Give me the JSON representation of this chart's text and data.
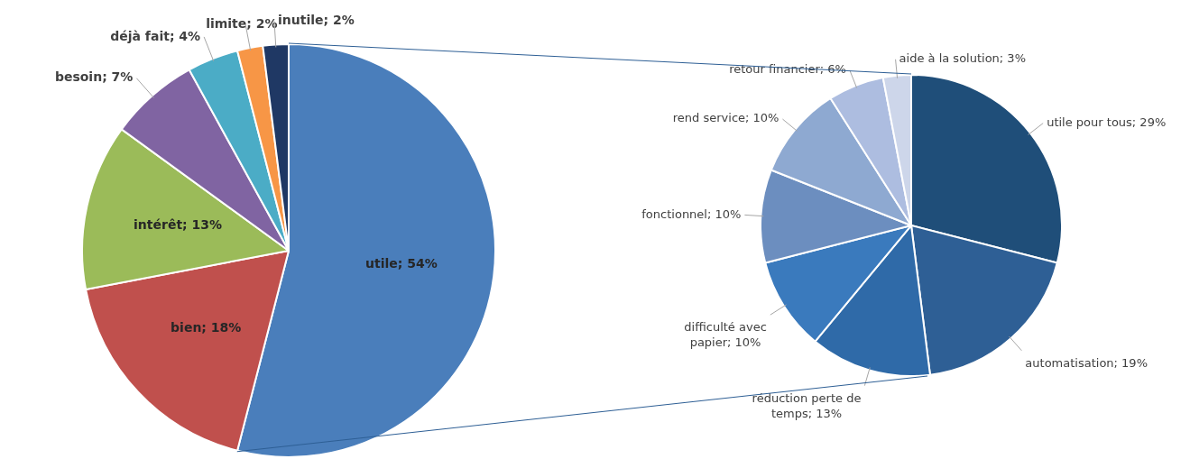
{
  "chart_data": [
    {
      "type": "pie",
      "categories": [
        "utile",
        "bien",
        "intérêt",
        "besoin",
        "déjà fait",
        "limite",
        "inutile"
      ],
      "values": [
        54,
        18,
        13,
        7,
        4,
        2,
        2
      ],
      "value_labels": [
        "54%",
        "18%",
        "13%",
        "7%",
        "4%",
        "2%",
        "2%"
      ],
      "colors": [
        "#4a7ebb",
        "#c0504d",
        "#9bbb59",
        "#8064a2",
        "#4bacc6",
        "#f79646",
        "#1f3864"
      ],
      "legend": false
    },
    {
      "type": "pie",
      "categories": [
        "utile pour tous",
        "automatisation",
        "réduction perte de temps",
        "difficulté avec papier",
        "fonctionnel",
        "rend service",
        "retour financier",
        "aide à la solution"
      ],
      "values": [
        29,
        19,
        13,
        10,
        10,
        10,
        6,
        3
      ],
      "value_labels": [
        "29%",
        "19%",
        "13%",
        "10%",
        "10%",
        "10%",
        "6%",
        "3%"
      ],
      "colors": [
        "#1f4e79",
        "#2e5f95",
        "#2f6aa8",
        "#3a7abd",
        "#6c8ebf",
        "#8ea9d1",
        "#adbde0",
        "#cdd6ea"
      ],
      "legend": false
    }
  ]
}
